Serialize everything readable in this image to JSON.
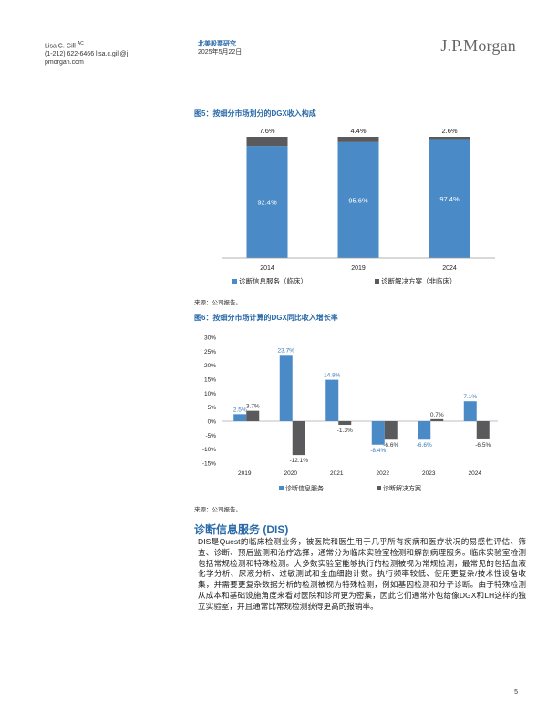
{
  "header": {
    "author_name": "Lisa C. Gill",
    "author_sup": "AC",
    "author_contact": "(1-212) 622-6466 lisa.c.gill@j",
    "author_site": "pmorgan.com",
    "report_type": "北美股票研究",
    "report_date": "2025年5月22日",
    "logo": "J.P.Morgan"
  },
  "figure5": {
    "title": "图5：按细分市场划分的DGX收入构成",
    "source": "来源：公司报告。",
    "chart_data": {
      "type": "bar",
      "stacked": true,
      "categories": [
        "2014",
        "2019",
        "2024"
      ],
      "series": [
        {
          "name": "诊断信息服务（临床）",
          "color": "#4a8ac6",
          "values": [
            92.4,
            95.6,
            97.4
          ],
          "labels": [
            "92.4%",
            "95.6%",
            "97.4%"
          ]
        },
        {
          "name": "诊断解决方案（非临床）",
          "color": "#5a5a5c",
          "values": [
            7.6,
            4.4,
            2.6
          ],
          "labels": [
            "7.6%",
            "4.4%",
            "2.6%"
          ]
        }
      ],
      "ylim": [
        0,
        100
      ],
      "legend": "bottom"
    }
  },
  "figure6": {
    "title": "图6：按细分市场计算的DGX同比收入增长率",
    "source": "来源：公司报告。",
    "chart_data": {
      "type": "bar",
      "categories": [
        "2019",
        "2020",
        "2021",
        "2022",
        "2023",
        "2024"
      ],
      "series": [
        {
          "name": "诊断信息服务",
          "color": "#4a8ac6",
          "values": [
            2.5,
            23.7,
            14.8,
            -8.4,
            -6.6,
            7.1
          ],
          "labels": [
            "2.5%",
            "23.7%",
            "14.8%",
            "-8.4%",
            "-6.6%",
            "7.1%"
          ]
        },
        {
          "name": "诊断解决方案",
          "color": "#5a5a5c",
          "values": [
            3.7,
            -12.1,
            -1.3,
            -6.6,
            0.7,
            -6.5
          ],
          "labels": [
            "3.7%",
            "-12.1%",
            "-1.3%",
            "-6.6%",
            "0.7%",
            "-6.5%"
          ]
        }
      ],
      "yticks": [
        "30%",
        "25%",
        "20%",
        "15%",
        "10%",
        "5%",
        "0%",
        "-5%",
        "-10%",
        "-15%"
      ],
      "ylim": [
        -15,
        30
      ],
      "legend": "bottom"
    }
  },
  "section": {
    "title": "诊断信息服务 (DIS)",
    "paragraph": "DIS是Quest的临床检测业务，被医院和医生用于几乎所有疾病和医疗状况的易感性评估、筛查、诊断、预后监测和治疗选择，通常分为临床实验室检测和解剖病理服务。临床实验室检测包括常规检测和特殊检测。大多数实验室能够执行的检测被视为常规检测，最常见的包括血液化学分析、尿液分析、过敏测试和全血细胞计数。执行频率较低、使用更复杂/技术性设备收集，并需要更复杂数据分析的检测被视为特殊检测，例如基因检测和分子诊断。由于特殊检测从成本和基础设施角度来看对医院和诊所更为密集，因此它们通常外包给像DGX和LH这样的独立实验室，并且通常比常规检测获得更高的报销率。"
  },
  "footer": {
    "page_number": "5"
  }
}
